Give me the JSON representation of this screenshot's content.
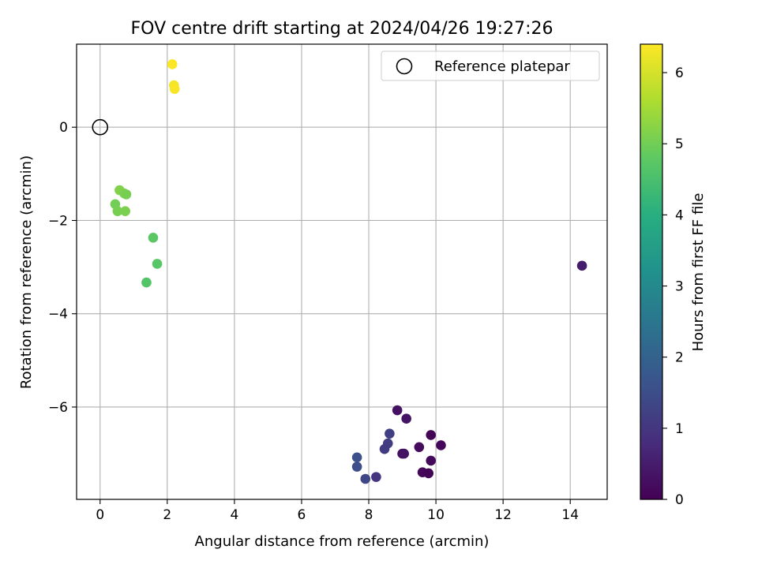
{
  "chart_data": {
    "type": "scatter",
    "title": "FOV centre drift starting at 2024/04/26 19:27:26",
    "xlabel": "Angular distance from reference (arcmin)",
    "ylabel": "Rotation from reference (arcmin)",
    "xlim": [
      -0.7,
      15.1
    ],
    "ylim": [
      -7.98,
      1.78
    ],
    "x_ticks": [
      0,
      2,
      4,
      6,
      8,
      10,
      12,
      14
    ],
    "y_ticks": [
      0,
      -2,
      -4,
      -6
    ],
    "grid": true,
    "legend": {
      "label": "Reference platepar",
      "placement": "top-right"
    },
    "reference_point": {
      "x": 0,
      "y": 0
    },
    "colorbar": {
      "label": "Hours from first FF file",
      "colormap": "viridis",
      "range": [
        0,
        6.4
      ],
      "ticks": [
        0,
        1,
        2,
        3,
        4,
        5,
        6
      ]
    },
    "points": [
      {
        "x": 2.15,
        "y": 1.35,
        "c": 6.38
      },
      {
        "x": 2.2,
        "y": 0.9,
        "c": 6.3
      },
      {
        "x": 2.22,
        "y": 0.82,
        "c": 6.35
      },
      {
        "x": 0.58,
        "y": -1.35,
        "c": 5.15
      },
      {
        "x": 0.72,
        "y": -1.42,
        "c": 5.1
      },
      {
        "x": 0.78,
        "y": -1.44,
        "c": 5.05
      },
      {
        "x": 0.45,
        "y": -1.65,
        "c": 5.0
      },
      {
        "x": 0.52,
        "y": -1.8,
        "c": 5.05
      },
      {
        "x": 0.75,
        "y": -1.8,
        "c": 5.1
      },
      {
        "x": 1.58,
        "y": -2.37,
        "c": 4.75
      },
      {
        "x": 1.7,
        "y": -2.93,
        "c": 4.7
      },
      {
        "x": 1.38,
        "y": -3.33,
        "c": 4.65
      },
      {
        "x": 14.35,
        "y": -2.97,
        "c": 0.5
      },
      {
        "x": 8.85,
        "y": -6.07,
        "c": 0.3
      },
      {
        "x": 9.12,
        "y": -6.25,
        "c": 0.35
      },
      {
        "x": 9.85,
        "y": -6.6,
        "c": 0.05
      },
      {
        "x": 8.62,
        "y": -6.57,
        "c": 1.2
      },
      {
        "x": 10.15,
        "y": -6.82,
        "c": 0.1
      },
      {
        "x": 9.5,
        "y": -6.86,
        "c": 0.2
      },
      {
        "x": 8.57,
        "y": -6.78,
        "c": 1.15
      },
      {
        "x": 8.47,
        "y": -6.9,
        "c": 1.1
      },
      {
        "x": 9.0,
        "y": -7.0,
        "c": 0.25
      },
      {
        "x": 9.05,
        "y": -7.0,
        "c": 0.3
      },
      {
        "x": 9.85,
        "y": -7.15,
        "c": 0.15
      },
      {
        "x": 7.65,
        "y": -7.08,
        "c": 1.55
      },
      {
        "x": 7.65,
        "y": -7.28,
        "c": 1.5
      },
      {
        "x": 9.6,
        "y": -7.4,
        "c": 0.1
      },
      {
        "x": 9.78,
        "y": -7.42,
        "c": 0.05
      },
      {
        "x": 7.9,
        "y": -7.54,
        "c": 1.35
      },
      {
        "x": 8.22,
        "y": -7.5,
        "c": 0.95
      }
    ]
  }
}
